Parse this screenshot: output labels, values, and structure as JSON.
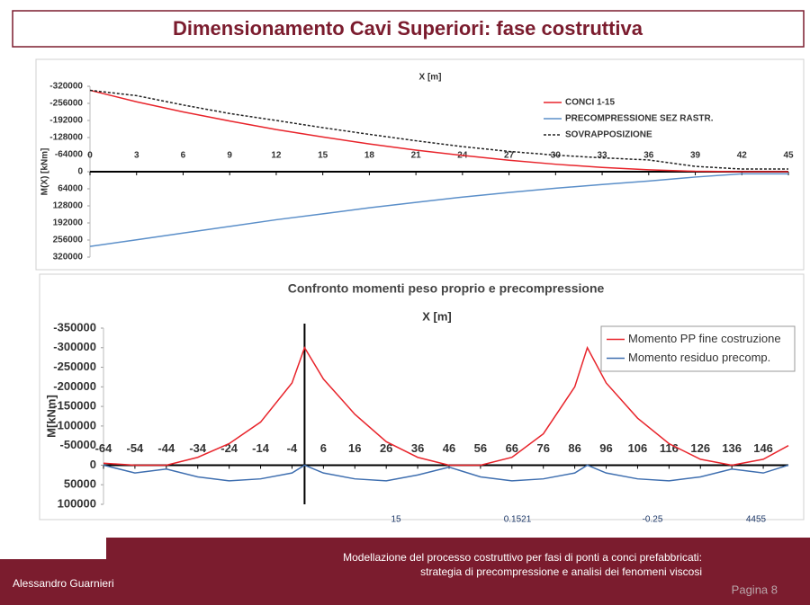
{
  "header": {
    "title": "Dimensionamento Cavi Superiori: fase costruttiva"
  },
  "chart_data": [
    {
      "type": "line",
      "x_label": "X [m]",
      "y_label": "M(X) [kNm]",
      "y_inverted": true,
      "legend": "top-right",
      "x": [
        0,
        3,
        6,
        9,
        12,
        15,
        18,
        21,
        24,
        27,
        30,
        33,
        36,
        39,
        42,
        45
      ],
      "xlim": [
        0,
        45
      ],
      "xticks": [
        0,
        3,
        6,
        9,
        12,
        15,
        18,
        21,
        24,
        27,
        30,
        33,
        36,
        39,
        42,
        45
      ],
      "ylim": [
        -320000,
        320000
      ],
      "yticks": [
        -320000,
        -256000,
        -192000,
        -128000,
        -64000,
        0,
        64000,
        128000,
        192000,
        256000,
        320000
      ],
      "series": [
        {
          "name": "CONCI 1-15",
          "color": "#e8242b",
          "values": [
            -305000,
            -262000,
            -224000,
            -190000,
            -158000,
            -130000,
            -104000,
            -81000,
            -61000,
            -43000,
            -28000,
            -16000,
            -7000,
            -1500,
            0,
            0
          ]
        },
        {
          "name": "PRECOMPRESSIONE SEZ RASTR.",
          "color": "#5b8fc9",
          "values": [
            280000,
            255000,
            230000,
            205000,
            180000,
            158000,
            135000,
            115000,
            95000,
            78000,
            62000,
            48000,
            35000,
            20000,
            8000,
            8000
          ]
        },
        {
          "name": "SOVRAPPOSIZIONE",
          "color": "#222222",
          "dashed": true,
          "values": [
            -305000,
            -285000,
            -250000,
            -218000,
            -192000,
            -165000,
            -140000,
            -116000,
            -94000,
            -76000,
            -62000,
            -52000,
            -44000,
            -20000,
            -10000,
            -10000
          ]
        }
      ]
    },
    {
      "type": "line",
      "title": "Confronto momenti peso proprio e precompressione",
      "x_label": "X [m]",
      "y_label": "M[kNm]",
      "y_inverted": true,
      "legend": "top-right",
      "x": [
        -64,
        -54,
        -44,
        -34,
        -24,
        -14,
        -4,
        0,
        6,
        16,
        26,
        36,
        46,
        56,
        66,
        76,
        86,
        90,
        96,
        106,
        116,
        126,
        136,
        146,
        154
      ],
      "xlim": [
        -64,
        154
      ],
      "xticks": [
        -64,
        -54,
        -44,
        -34,
        -24,
        -14,
        -4,
        6,
        16,
        26,
        36,
        46,
        56,
        66,
        76,
        86,
        96,
        106,
        116,
        126,
        136,
        146
      ],
      "ylim": [
        -350000,
        100000
      ],
      "yticks": [
        -350000,
        -300000,
        -250000,
        -200000,
        -150000,
        -100000,
        -50000,
        0,
        50000,
        100000
      ],
      "series": [
        {
          "name": "Momento PP fine costruzione",
          "color": "#e8242b",
          "values": [
            -5000,
            0,
            0,
            -20000,
            -55000,
            -110000,
            -210000,
            -300000,
            -220000,
            -130000,
            -60000,
            -20000,
            0,
            0,
            -20000,
            -80000,
            -200000,
            -300000,
            -210000,
            -120000,
            -55000,
            -15000,
            0,
            -15000,
            -50000
          ]
        },
        {
          "name": "Momento residuo precomp.",
          "color": "#3f6fb0",
          "values": [
            0,
            20000,
            10000,
            30000,
            40000,
            35000,
            20000,
            0,
            20000,
            35000,
            40000,
            25000,
            5000,
            30000,
            40000,
            35000,
            20000,
            0,
            20000,
            35000,
            40000,
            30000,
            10000,
            20000,
            0
          ]
        }
      ]
    }
  ],
  "background_fragments": [
    "15",
    "0.1521",
    "-0.25",
    "4455"
  ],
  "footer": {
    "author": "Alessandro Guarnieri",
    "description": "Modellazione del processo costruttivo per fasi di ponti a conci prefabbricati: strategia di precompressione e analisi dei fenomeni viscosi",
    "page": "Pagina 8"
  }
}
